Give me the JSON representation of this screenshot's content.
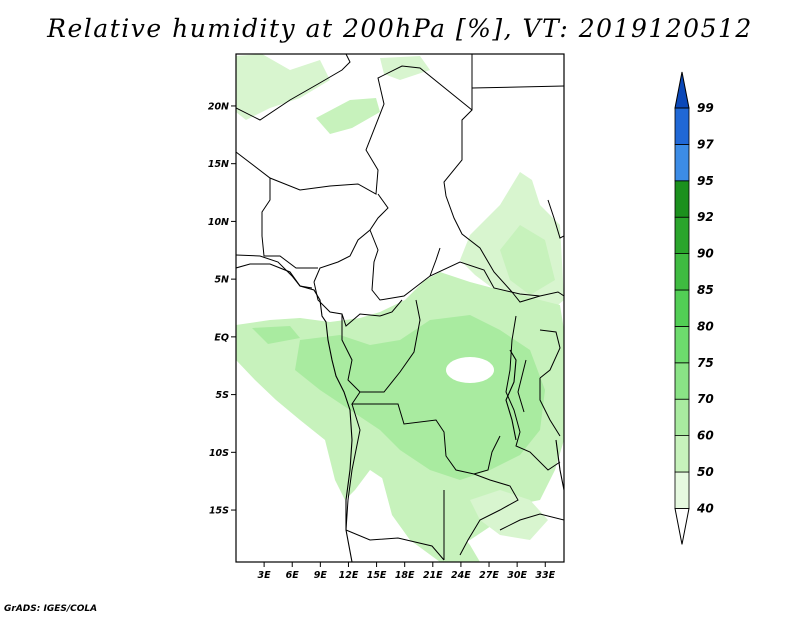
{
  "title": "Relative humidity at 200hPa [%], VT: 2019120512",
  "credit": "GrADS: IGES/COLA",
  "map": {
    "lat_range": [
      -19.5,
      24.5
    ],
    "lon_range": [
      0,
      35
    ],
    "lat_ticks": [
      {
        "value": 20,
        "label": "20N"
      },
      {
        "value": 15,
        "label": "15N"
      },
      {
        "value": 10,
        "label": "10N"
      },
      {
        "value": 5,
        "label": "5N"
      },
      {
        "value": 0,
        "label": "EQ"
      },
      {
        "value": -5,
        "label": "5S"
      },
      {
        "value": -10,
        "label": "10S"
      },
      {
        "value": -15,
        "label": "15S"
      }
    ],
    "lon_ticks": [
      {
        "value": 3,
        "label": "3E"
      },
      {
        "value": 6,
        "label": "6E"
      },
      {
        "value": 9,
        "label": "9E"
      },
      {
        "value": 12,
        "label": "12E"
      },
      {
        "value": 15,
        "label": "15E"
      },
      {
        "value": 18,
        "label": "18E"
      },
      {
        "value": 21,
        "label": "21E"
      },
      {
        "value": 24,
        "label": "24E"
      },
      {
        "value": 27,
        "label": "27E"
      },
      {
        "value": 30,
        "label": "30E"
      },
      {
        "value": 33,
        "label": "33E"
      }
    ]
  },
  "colorbar": {
    "levels": [
      "40",
      "50",
      "60",
      "70",
      "75",
      "80",
      "85",
      "90",
      "92",
      "95",
      "97",
      "99"
    ],
    "colors": [
      "#ffffff",
      "#e6f9e0",
      "#c7f2bc",
      "#a9eba0",
      "#8ae386",
      "#6ddb6d",
      "#52ce55",
      "#3fbb41",
      "#2aa52c",
      "#1b901d",
      "#3c8ce6",
      "#2068d6",
      "#0b48b8"
    ]
  },
  "humidity_colors": {
    "light": "#d8f5cf",
    "medium": "#bdeeb2",
    "strong": "#a4e698"
  }
}
